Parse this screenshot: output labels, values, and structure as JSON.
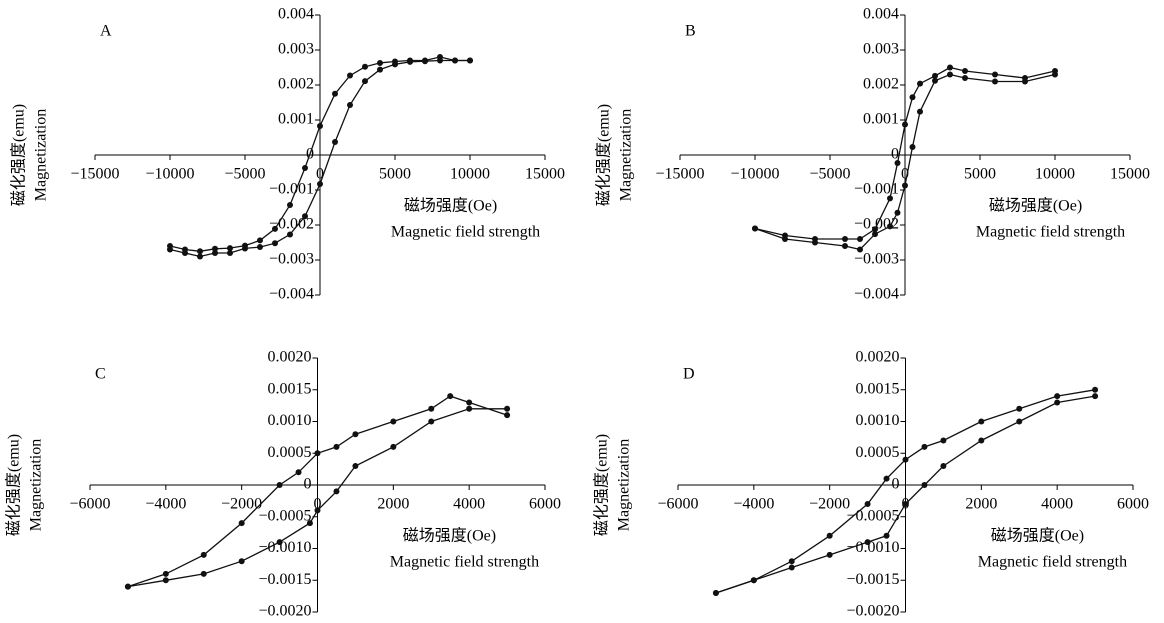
{
  "chart_data": [
    {
      "type": "line",
      "label": "A",
      "xlabel": [
        "磁场强度(Oe)",
        "Magnetic field strength"
      ],
      "ylabel": [
        "磁化强度(emu)",
        "Magnetization"
      ],
      "xlim": [
        -15000,
        15000
      ],
      "ylim": [
        -0.004,
        0.004
      ],
      "xticks": [
        {
          "value": -15000,
          "label": "−15000"
        },
        {
          "value": -10000,
          "label": "−10000"
        },
        {
          "value": -5000,
          "label": "−5000"
        },
        0,
        5000,
        10000,
        15000
      ],
      "yticks": [
        {
          "value": -0.004,
          "label": "−0.004"
        },
        {
          "value": -0.003,
          "label": "−0.003"
        },
        {
          "value": -0.002,
          "label": "−0.002"
        },
        {
          "value": -0.001,
          "label": "−0.001"
        },
        0,
        0.001,
        0.002,
        0.003,
        0.004
      ],
      "series": [
        {
          "color": "#111",
          "x": [
            10000,
            9000,
            8000,
            7000,
            6000,
            5000,
            4000,
            3000,
            2000,
            1000,
            0,
            -1000,
            -2000,
            -3000,
            -4000,
            -5000,
            -6000,
            -7000,
            -8000,
            -9000,
            -10000
          ],
          "values": [
            0.0027,
            0.0027,
            0.0028,
            0.0027,
            0.0027,
            0.00267,
            0.00263,
            0.00252,
            0.00227,
            0.00175,
            0.00083,
            -0.00037,
            -0.00143,
            -0.00211,
            -0.00244,
            -0.00259,
            -0.00266,
            -0.00268,
            -0.00275,
            -0.0027,
            -0.0026
          ]
        },
        {
          "color": "#111",
          "x": [
            -10000,
            -9000,
            -8000,
            -7000,
            -6000,
            -5000,
            -4000,
            -3000,
            -2000,
            -1000,
            0,
            1000,
            2000,
            3000,
            4000,
            5000,
            6000,
            7000,
            8000,
            9000,
            10000
          ],
          "values": [
            -0.0027,
            -0.0028,
            -0.0029,
            -0.0028,
            -0.0028,
            -0.00267,
            -0.00263,
            -0.00252,
            -0.00227,
            -0.00175,
            -0.00083,
            0.00037,
            0.00143,
            0.00211,
            0.00244,
            0.00259,
            0.00266,
            0.00268,
            0.0027,
            0.0027,
            0.0027
          ]
        }
      ]
    },
    {
      "type": "line",
      "label": "B",
      "xlabel": [
        "磁场强度(Oe)",
        "Magnetic field strength"
      ],
      "ylabel": [
        "磁化强度(emu)",
        "Magnetization"
      ],
      "xlim": [
        -15000,
        15000
      ],
      "ylim": [
        -0.004,
        0.004
      ],
      "xticks": [
        {
          "value": -15000,
          "label": "−15000"
        },
        {
          "value": -10000,
          "label": "−10000"
        },
        {
          "value": -5000,
          "label": "−5000"
        },
        0,
        5000,
        10000,
        15000
      ],
      "yticks": [
        {
          "value": -0.004,
          "label": "−0.004"
        },
        {
          "value": -0.003,
          "label": "−0.003"
        },
        {
          "value": -0.002,
          "label": "−0.002"
        },
        {
          "value": -0.001,
          "label": "−0.001"
        },
        0,
        0.001,
        0.002,
        0.003,
        0.004
      ],
      "series": [
        {
          "color": "#111",
          "x": [
            10000,
            8000,
            6000,
            4000,
            3000,
            2000,
            1000,
            500,
            0,
            -500,
            -1000,
            -2000,
            -3000,
            -4000,
            -6000,
            -8000,
            -10000
          ],
          "values": [
            0.0024,
            0.0022,
            0.0023,
            0.0024,
            0.0025,
            0.00226,
            0.00204,
            0.00165,
            0.00087,
            -0.00023,
            -0.00124,
            -0.00212,
            -0.0024,
            -0.0024,
            -0.0024,
            -0.0023,
            -0.0021
          ]
        },
        {
          "color": "#111",
          "x": [
            -10000,
            -8000,
            -6000,
            -4000,
            -3000,
            -2000,
            -1000,
            -500,
            0,
            500,
            1000,
            2000,
            3000,
            4000,
            6000,
            8000,
            10000
          ],
          "values": [
            -0.0021,
            -0.0024,
            -0.0025,
            -0.0026,
            -0.0027,
            -0.00226,
            -0.00204,
            -0.00165,
            -0.00087,
            0.00023,
            0.00124,
            0.00212,
            0.0023,
            0.0022,
            0.0021,
            0.0021,
            0.0023
          ]
        }
      ]
    },
    {
      "type": "line",
      "label": "C",
      "xlabel": [
        "磁场强度(Oe)",
        "Magnetic field strength"
      ],
      "ylabel": [
        "磁化强度(emu)",
        "Magnetization"
      ],
      "xlim": [
        -6000,
        6000
      ],
      "ylim": [
        -0.002,
        0.002
      ],
      "xticks": [
        {
          "value": -6000,
          "label": "−6000"
        },
        {
          "value": -4000,
          "label": "−4000"
        },
        {
          "value": -2000,
          "label": "−2000"
        },
        0,
        2000,
        4000,
        6000
      ],
      "yticks": [
        {
          "value": -0.002,
          "label": "−0.0020"
        },
        {
          "value": -0.0015,
          "label": "−0.0015"
        },
        {
          "value": -0.001,
          "label": "−0.0010"
        },
        {
          "value": -0.0005,
          "label": "−0.0005"
        },
        0,
        0.0005,
        {
          "value": 0.001,
          "label": "0.0010"
        },
        0.0015,
        {
          "value": 0.002,
          "label": "0.0020"
        }
      ],
      "series": [
        {
          "color": "#111",
          "x": [
            5000,
            4000,
            3500,
            3000,
            2000,
            1000,
            500,
            0,
            -500,
            -1000,
            -2000,
            -3000,
            -4000,
            -5000
          ],
          "values": [
            0.0011,
            0.0013,
            0.0014,
            0.0012,
            0.001,
            0.0008,
            0.0006,
            0.0005,
            0.0002,
            0,
            -0.0006,
            -0.0011,
            -0.0014,
            -0.0016
          ]
        },
        {
          "color": "#111",
          "x": [
            -5000,
            -4000,
            -3000,
            -2000,
            -1000,
            -200,
            0,
            500,
            1000,
            2000,
            3000,
            4000,
            5000
          ],
          "values": [
            -0.0016,
            -0.0015,
            -0.0014,
            -0.0012,
            -0.0009,
            -0.0006,
            -0.0004,
            -0.0001,
            0.0003,
            0.0006,
            0.001,
            0.0012,
            0.0012
          ]
        }
      ]
    },
    {
      "type": "line",
      "label": "D",
      "xlabel": [
        "磁场强度(Oe)",
        "Magnetic field strength"
      ],
      "ylabel": [
        "磁化强度(emu)",
        "Magnetization"
      ],
      "xlim": [
        -6000,
        6000
      ],
      "ylim": [
        -0.002,
        0.002
      ],
      "xticks": [
        {
          "value": -6000,
          "label": "−6000"
        },
        {
          "value": -4000,
          "label": "−4000"
        },
        {
          "value": -2000,
          "label": "−2000"
        },
        0,
        2000,
        4000,
        6000
      ],
      "yticks": [
        {
          "value": -0.002,
          "label": "−0.0020"
        },
        {
          "value": -0.0015,
          "label": "−0.0015"
        },
        {
          "value": -0.001,
          "label": "−0.0010"
        },
        {
          "value": -0.0005,
          "label": "−0.0005"
        },
        0,
        0.0005,
        {
          "value": 0.001,
          "label": "0.0010"
        },
        0.0015,
        {
          "value": 0.002,
          "label": "0.0020"
        }
      ],
      "series": [
        {
          "color": "#111",
          "x": [
            5000,
            4000,
            3000,
            2000,
            1000,
            500,
            0,
            -500,
            -1000,
            -2000,
            -3000,
            -4000,
            -5000
          ],
          "values": [
            0.0015,
            0.0014,
            0.0012,
            0.001,
            0.0007,
            0.0006,
            0.0004,
            0.0001,
            -0.0003,
            -0.0008,
            -0.0012,
            -0.0015,
            -0.0017
          ]
        },
        {
          "color": "#111",
          "x": [
            -5000,
            -4000,
            -3000,
            -2000,
            -1000,
            -500,
            0,
            500,
            1000,
            2000,
            3000,
            4000,
            5000
          ],
          "values": [
            -0.0017,
            -0.0015,
            -0.0013,
            -0.0011,
            -0.0009,
            -0.0008,
            -0.0003,
            0,
            0.0003,
            0.0007,
            0.001,
            0.0013,
            0.0014
          ]
        }
      ]
    }
  ]
}
